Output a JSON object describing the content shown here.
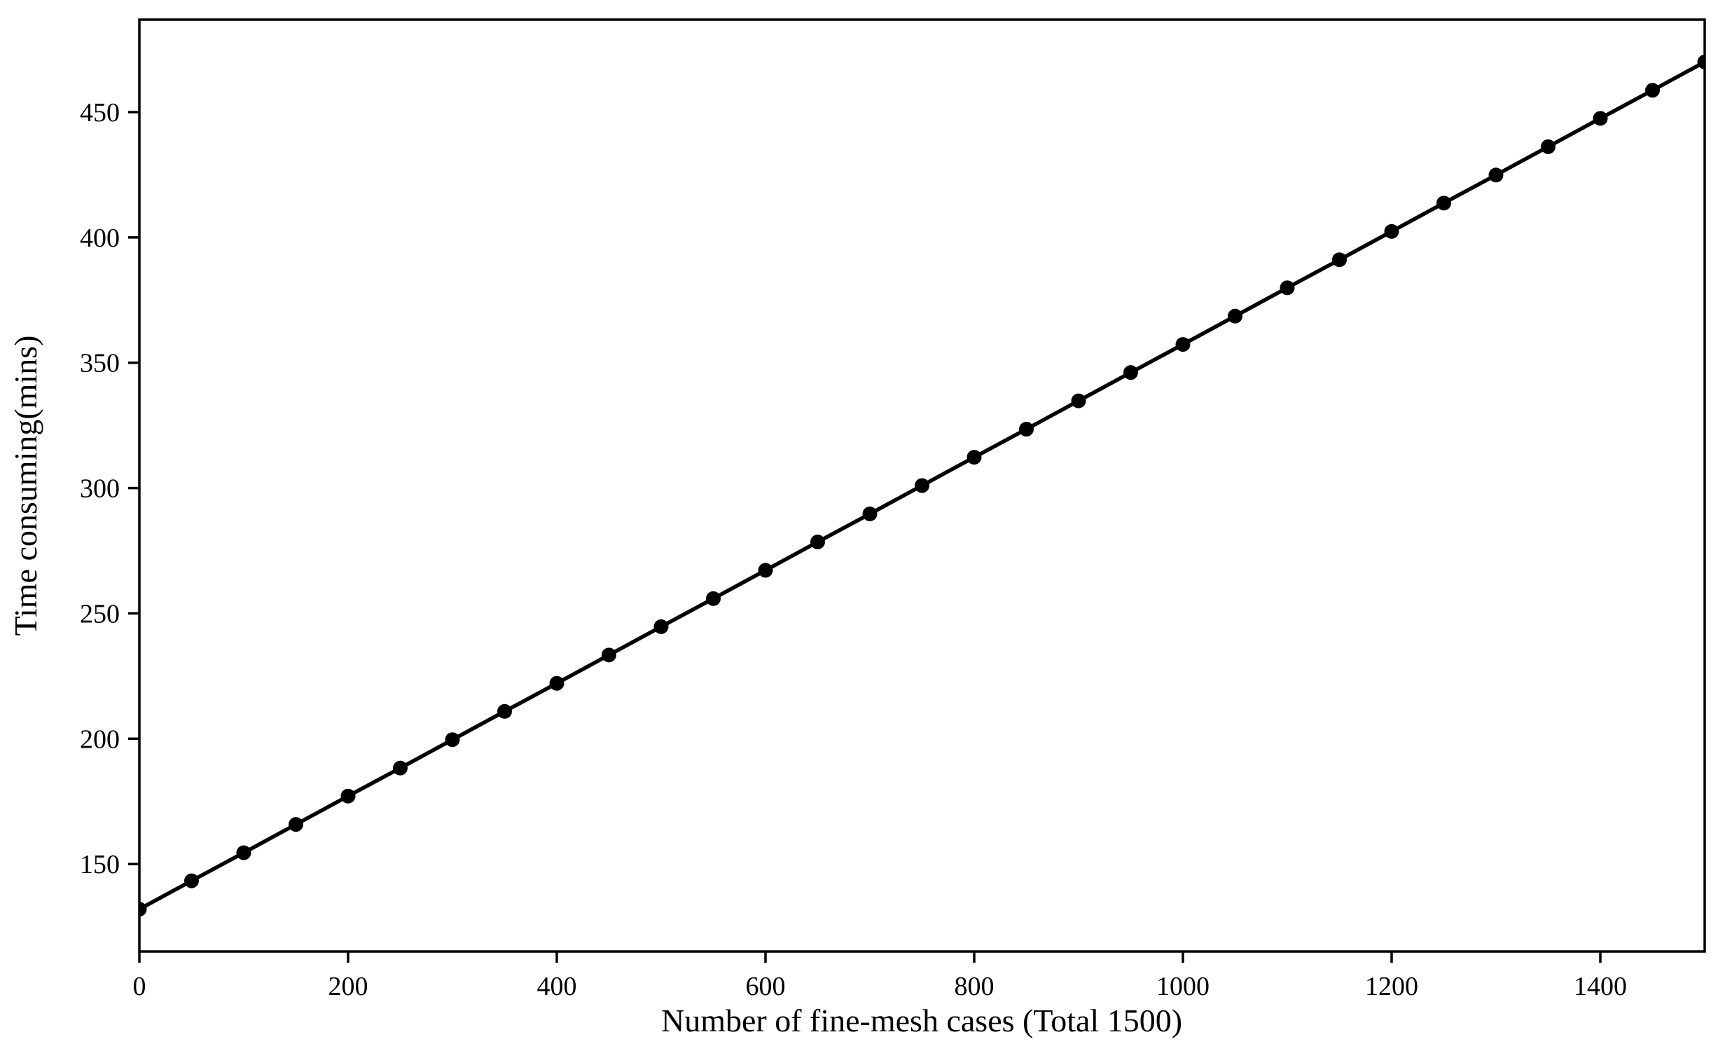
{
  "chart_data": {
    "type": "line",
    "title": "",
    "xlabel": "Number of fine-mesh cases (Total 1500)",
    "ylabel": "Time consuming(mins)",
    "x": [
      0,
      50,
      100,
      150,
      200,
      250,
      300,
      350,
      400,
      450,
      500,
      550,
      600,
      650,
      700,
      750,
      800,
      850,
      900,
      950,
      1000,
      1050,
      1100,
      1150,
      1200,
      1250,
      1300,
      1350,
      1400,
      1450,
      1500
    ],
    "series": [
      {
        "name": "time-consuming",
        "values": [
          132.0,
          143.3,
          154.5,
          165.8,
          177.1,
          188.3,
          199.6,
          210.9,
          222.1,
          233.4,
          244.7,
          255.9,
          267.2,
          278.5,
          289.7,
          301.0,
          312.3,
          323.5,
          334.8,
          346.1,
          357.3,
          368.6,
          379.9,
          391.1,
          402.4,
          413.7,
          424.9,
          436.2,
          447.5,
          458.7,
          470.0
        ]
      }
    ],
    "xlim": [
      0,
      1500
    ],
    "ylim": [
      115.1,
      486.9
    ],
    "x_ticks": [
      0,
      200,
      400,
      600,
      800,
      1000,
      1200,
      1400
    ],
    "y_ticks": [
      150,
      200,
      250,
      300,
      350,
      400,
      450
    ],
    "grid": false,
    "legend_position": "none",
    "line_color": "#000000",
    "marker": "circle",
    "marker_color": "#000000",
    "axis_color": "#000000",
    "background_color": "#ffffff"
  }
}
